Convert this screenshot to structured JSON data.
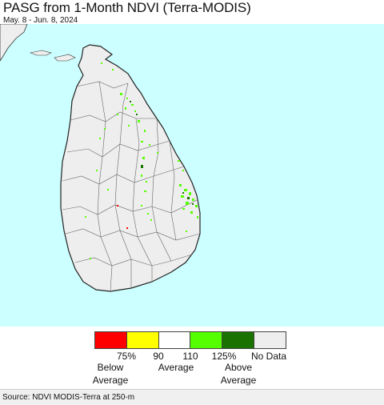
{
  "header": {
    "title": "PASG from 1-Month NDVI (Terra-MODIS)",
    "date_range": "May. 8 - Jun. 8, 2024"
  },
  "map": {
    "ocean_color": "#ccffff",
    "land_color": "#eeeeee",
    "boundary_color": "#666666"
  },
  "legend": {
    "swatches": [
      {
        "color": "#ff0000",
        "category": "0-75%"
      },
      {
        "color": "#ffff00",
        "category": "75-90%"
      },
      {
        "color": "#ffffff",
        "category": "90-110%"
      },
      {
        "color": "#55ff00",
        "category": "110-125%"
      },
      {
        "color": "#1a7300",
        "category": ">125%"
      },
      {
        "color": "#eeeeee",
        "category": "No Data"
      }
    ],
    "tick_labels": [
      "75%",
      "90",
      "110",
      "125%",
      "No Data"
    ],
    "below_label_1": "Below",
    "below_label_2": "Average",
    "average_label": "Average",
    "above_label_1": "Above",
    "above_label_2": "Average"
  },
  "footer": {
    "source": "Source: NDVI MODIS-Terra at 250-m"
  }
}
